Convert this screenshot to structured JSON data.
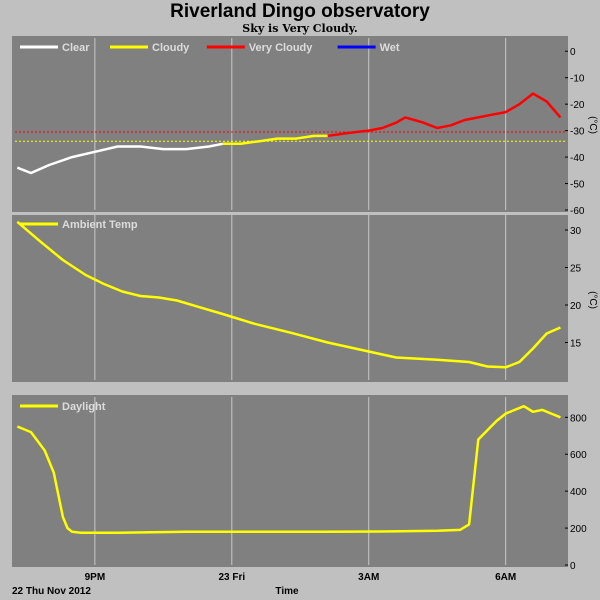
{
  "header": {
    "title": "Riverland Dingo observatory",
    "subtitle": "Sky is Very Cloudy."
  },
  "footer": {
    "date_label": "22 Thu Nov 2012",
    "time_label": "Time"
  },
  "colors": {
    "panel_bg": "#808080",
    "grid": "#c8c8c8",
    "clear": "#ffffff",
    "cloudy": "#ffff00",
    "very_cloudy": "#ff0000",
    "wet": "#0000ff"
  },
  "x_axis": {
    "range_hours": [
      19.25,
      31.3
    ],
    "ticks": [
      {
        "hour": 21,
        "label": "9PM"
      },
      {
        "hour": 24,
        "label": "23 Fri"
      },
      {
        "hour": 27,
        "label": "3AM"
      },
      {
        "hour": 30,
        "label": "6AM"
      }
    ]
  },
  "chart_data": [
    {
      "type": "line",
      "panel": "sky",
      "ylabel": "(°C)",
      "ylim": [
        -60,
        5
      ],
      "yticks": [
        0,
        -10,
        -20,
        -30,
        -40,
        -50,
        -60
      ],
      "legend": [
        {
          "name": "Clear",
          "color": "#ffffff"
        },
        {
          "name": "Cloudy",
          "color": "#ffff00"
        },
        {
          "name": "Very Cloudy",
          "color": "#ff0000"
        },
        {
          "name": "Wet",
          "color": "#0000ff"
        }
      ],
      "thresholds": [
        {
          "value": -30.5,
          "color": "#ff0000"
        },
        {
          "value": -34,
          "color": "#ffff00"
        }
      ],
      "series": [
        {
          "name": "Clear",
          "color": "#ffffff",
          "x": [
            19.3,
            19.6,
            20.0,
            20.5,
            21.0,
            21.5,
            22.0,
            22.5,
            23.0,
            23.5,
            23.8
          ],
          "y": [
            -44,
            -46,
            -43,
            -40,
            -38,
            -36,
            -36,
            -37,
            -37,
            -36,
            -35
          ]
        },
        {
          "name": "Cloudy",
          "color": "#ffff00",
          "x": [
            23.8,
            24.2,
            24.6,
            25.0,
            25.4,
            25.8,
            26.1
          ],
          "y": [
            -35,
            -35,
            -34,
            -33,
            -33,
            -32,
            -32
          ]
        },
        {
          "name": "Very Cloudy",
          "color": "#ff0000",
          "x": [
            26.1,
            26.5,
            27.0,
            27.3,
            27.6,
            27.8,
            28.0,
            28.2,
            28.5,
            28.8,
            29.1,
            29.4,
            29.7,
            30.0,
            30.3,
            30.6,
            30.9,
            31.2
          ],
          "y": [
            -32,
            -31,
            -30,
            -29,
            -27,
            -25,
            -26,
            -27,
            -29,
            -28,
            -26,
            -25,
            -24,
            -23,
            -20,
            -16,
            -19,
            -25
          ]
        }
      ]
    },
    {
      "type": "line",
      "panel": "ambient",
      "ylabel": "(°C)",
      "ylim": [
        10,
        32
      ],
      "yticks": [
        30,
        25,
        20,
        15
      ],
      "legend": [
        {
          "name": "Ambient Temp",
          "color": "#ffff00"
        }
      ],
      "series": [
        {
          "name": "Ambient Temp",
          "color": "#ffff00",
          "x": [
            19.3,
            19.8,
            20.3,
            20.8,
            21.2,
            21.6,
            22.0,
            22.4,
            22.8,
            23.3,
            23.8,
            24.5,
            25.3,
            26.1,
            27.0,
            27.6,
            28.5,
            29.2,
            29.6,
            30.0,
            30.3,
            30.6,
            30.9,
            31.2
          ],
          "y": [
            31.1,
            28.5,
            26.0,
            24.0,
            22.8,
            21.8,
            21.2,
            21.0,
            20.6,
            19.7,
            18.8,
            17.5,
            16.3,
            15.0,
            13.8,
            13.0,
            12.7,
            12.4,
            11.8,
            11.7,
            12.4,
            14.2,
            16.2,
            17.0
          ]
        }
      ]
    },
    {
      "type": "line",
      "panel": "daylight",
      "ylim": [
        0,
        910
      ],
      "yticks": [
        800,
        600,
        400,
        200,
        0
      ],
      "legend": [
        {
          "name": "Daylight",
          "color": "#ffff00"
        }
      ],
      "series": [
        {
          "name": "Daylight",
          "color": "#ffff00",
          "x": [
            19.3,
            19.6,
            19.9,
            20.1,
            20.3,
            20.4,
            20.5,
            20.7,
            21.5,
            23.0,
            24.5,
            26.0,
            27.5,
            28.5,
            29.0,
            29.2,
            29.3,
            29.4,
            29.6,
            29.8,
            30.0,
            30.2,
            30.4,
            30.6,
            30.8,
            31.0,
            31.2
          ],
          "y": [
            750,
            720,
            620,
            500,
            260,
            200,
            180,
            175,
            175,
            180,
            180,
            180,
            182,
            185,
            190,
            220,
            450,
            680,
            730,
            780,
            820,
            840,
            860,
            830,
            840,
            820,
            800
          ]
        }
      ]
    }
  ]
}
